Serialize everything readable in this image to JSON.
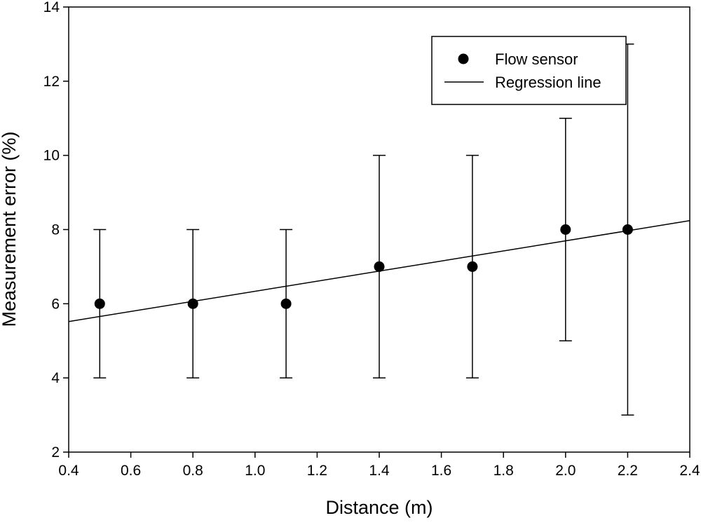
{
  "chart_data": {
    "type": "scatter",
    "xlabel": "Distance (m)",
    "ylabel": "Measurement error (%)",
    "xlim": [
      0.4,
      2.4
    ],
    "ylim": [
      2,
      14
    ],
    "xticks": [
      "0.4",
      "0.6",
      "0.8",
      "1.0",
      "1.2",
      "1.4",
      "1.6",
      "1.8",
      "2.0",
      "2.2",
      "2.4"
    ],
    "yticks": [
      "2",
      "4",
      "6",
      "8",
      "10",
      "12",
      "14"
    ],
    "grid": false,
    "legend_position": "top-right",
    "series": [
      {
        "name": "Flow sensor",
        "kind": "points-with-error-bars",
        "points": [
          {
            "x": 0.5,
            "y": 6,
            "low": 4,
            "high": 8
          },
          {
            "x": 0.8,
            "y": 6,
            "low": 4,
            "high": 8
          },
          {
            "x": 1.1,
            "y": 6,
            "low": 4,
            "high": 8
          },
          {
            "x": 1.4,
            "y": 7,
            "low": 4,
            "high": 10
          },
          {
            "x": 1.7,
            "y": 7,
            "low": 4,
            "high": 10
          },
          {
            "x": 2.0,
            "y": 8,
            "low": 5,
            "high": 11
          },
          {
            "x": 2.2,
            "y": 8,
            "low": 3,
            "high": 13
          }
        ]
      },
      {
        "name": "Regression line",
        "kind": "line",
        "points": [
          {
            "x": 0.4,
            "y": 5.52
          },
          {
            "x": 2.4,
            "y": 8.24
          }
        ]
      }
    ],
    "colors": {
      "marker": "#000000",
      "line": "#000000"
    }
  }
}
